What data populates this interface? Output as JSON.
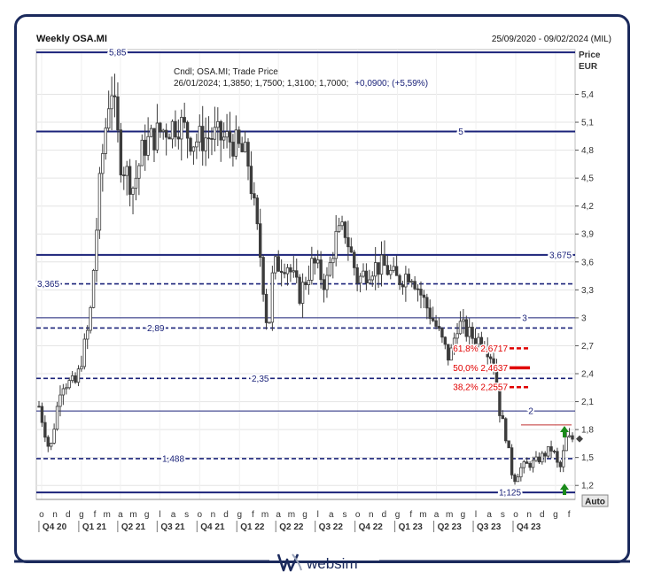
{
  "header": {
    "title": "Weekly OSA.MI",
    "date_range": "25/09/2020 - 09/02/2024 (MIL)"
  },
  "axis": {
    "price_label": "Price",
    "currency_label": "EUR",
    "auto_button": "Auto"
  },
  "info": {
    "line1": "Cndl; OSA.MI; Trade Price",
    "line2_prefix": "26/01/2024; 1,3850; 1,7500; 1,3100; 1,7000;",
    "line2_change": "+0,0900; (+5,59%)"
  },
  "logo": {
    "text": "websim"
  },
  "colors": {
    "navy": "#1b237a",
    "candle": "#3c3c3c",
    "fib": "#e00000",
    "arrow": "#1a8a1a",
    "grid": "#cfcfcf"
  },
  "chart_data": {
    "type": "candlestick",
    "title": "Weekly OSA.MI",
    "ylabel": "Price EUR",
    "ylim": [
      1.05,
      5.88
    ],
    "y_ticks": [
      "5,4",
      "5,1",
      "4,8",
      "4,5",
      "4,2",
      "3,9",
      "3,6",
      "3,3",
      "3",
      "2,7",
      "2,4",
      "2,1",
      "1,8",
      "1,5",
      "1,2"
    ],
    "y_tick_values": [
      5.4,
      5.1,
      4.8,
      4.5,
      4.2,
      3.9,
      3.6,
      3.3,
      3.0,
      2.7,
      2.4,
      2.1,
      1.8,
      1.5,
      1.2
    ],
    "x_start": "2020-09-25",
    "x_end": "2024-02-09",
    "month_ticks": [
      "o",
      "n",
      "d",
      "g",
      "f",
      "m",
      "a",
      "m",
      "g",
      "l",
      "a",
      "s",
      "o",
      "n",
      "d",
      "g",
      "f",
      "m",
      "a",
      "m",
      "g",
      "l",
      "a",
      "s",
      "o",
      "n",
      "d",
      "g",
      "f",
      "m",
      "a",
      "m",
      "g",
      "l",
      "a",
      "s",
      "o",
      "n",
      "d",
      "g",
      "f"
    ],
    "quarter_labels": [
      "Q4 20",
      "Q1 21",
      "Q2 21",
      "Q3 21",
      "Q4 21",
      "Q1 22",
      "Q2 22",
      "Q3 22",
      "Q4 22",
      "Q1 23",
      "Q2 23",
      "Q3 23",
      "Q4 23"
    ],
    "horizontal_levels": [
      {
        "value": 5.85,
        "label": "5,85",
        "style": "solid"
      },
      {
        "value": 5.0,
        "label": "5",
        "style": "solid"
      },
      {
        "value": 3.675,
        "label": "3,675",
        "style": "solid"
      },
      {
        "value": 3.365,
        "label": "3,365",
        "style": "dashed"
      },
      {
        "value": 3.0,
        "label": "3",
        "style": "thin"
      },
      {
        "value": 2.89,
        "label": "2,89",
        "style": "dashed"
      },
      {
        "value": 2.35,
        "label": "2,35",
        "style": "dashed"
      },
      {
        "value": 2.0,
        "label": "2",
        "style": "thin"
      },
      {
        "value": 1.488,
        "label": "1,488",
        "style": "dashed"
      },
      {
        "value": 1.125,
        "label": "1,125",
        "style": "solid"
      }
    ],
    "fib_levels": [
      {
        "label": "61,8% 2,6717",
        "value": 2.6717
      },
      {
        "label": "50,0% 2,4637",
        "value": 2.4637
      },
      {
        "label": "38,2% 2,2557",
        "value": 2.2557
      }
    ],
    "resistance_line": {
      "value": 1.85
    },
    "last_price": 1.7,
    "anchors": [
      [
        "2020-09-25",
        2.05
      ],
      [
        "2020-10-20",
        1.55
      ],
      [
        "2020-11-15",
        2.3
      ],
      [
        "2020-12-20",
        2.3
      ],
      [
        "2021-01-20",
        2.95
      ],
      [
        "2021-02-15",
        4.6
      ],
      [
        "2021-03-10",
        5.55
      ],
      [
        "2021-04-01",
        4.7
      ],
      [
        "2021-05-01",
        4.4
      ],
      [
        "2021-05-25",
        4.85
      ],
      [
        "2021-07-01",
        5.0
      ],
      [
        "2021-08-15",
        5.1
      ],
      [
        "2021-09-15",
        4.9
      ],
      [
        "2021-11-01",
        4.95
      ],
      [
        "2021-12-15",
        4.9
      ],
      [
        "2022-01-20",
        4.7
      ],
      [
        "2022-02-20",
        3.6
      ],
      [
        "2022-03-08",
        2.8
      ],
      [
        "2022-03-20",
        3.55
      ],
      [
        "2022-04-20",
        3.6
      ],
      [
        "2022-05-20",
        3.25
      ],
      [
        "2022-06-20",
        3.6
      ],
      [
        "2022-07-20",
        3.35
      ],
      [
        "2022-08-10",
        3.85
      ],
      [
        "2022-09-01",
        3.95
      ],
      [
        "2022-10-01",
        3.4
      ],
      [
        "2022-11-01",
        3.55
      ],
      [
        "2022-12-01",
        3.55
      ],
      [
        "2023-01-01",
        3.4
      ],
      [
        "2023-02-01",
        3.5
      ],
      [
        "2023-03-01",
        3.2
      ],
      [
        "2023-04-01",
        2.9
      ],
      [
        "2023-05-01",
        2.55
      ],
      [
        "2023-05-20",
        2.95
      ],
      [
        "2023-06-20",
        2.8
      ],
      [
        "2023-07-20",
        2.75
      ],
      [
        "2023-08-10",
        2.55
      ],
      [
        "2023-08-25",
        2.0
      ],
      [
        "2023-09-10",
        1.7
      ],
      [
        "2023-09-25",
        1.25
      ],
      [
        "2023-10-15",
        1.4
      ],
      [
        "2023-11-15",
        1.45
      ],
      [
        "2023-12-10",
        1.55
      ],
      [
        "2023-12-25",
        1.6
      ],
      [
        "2024-01-10",
        1.35
      ],
      [
        "2024-01-26",
        1.7
      ],
      [
        "2024-02-09",
        1.7
      ]
    ]
  }
}
